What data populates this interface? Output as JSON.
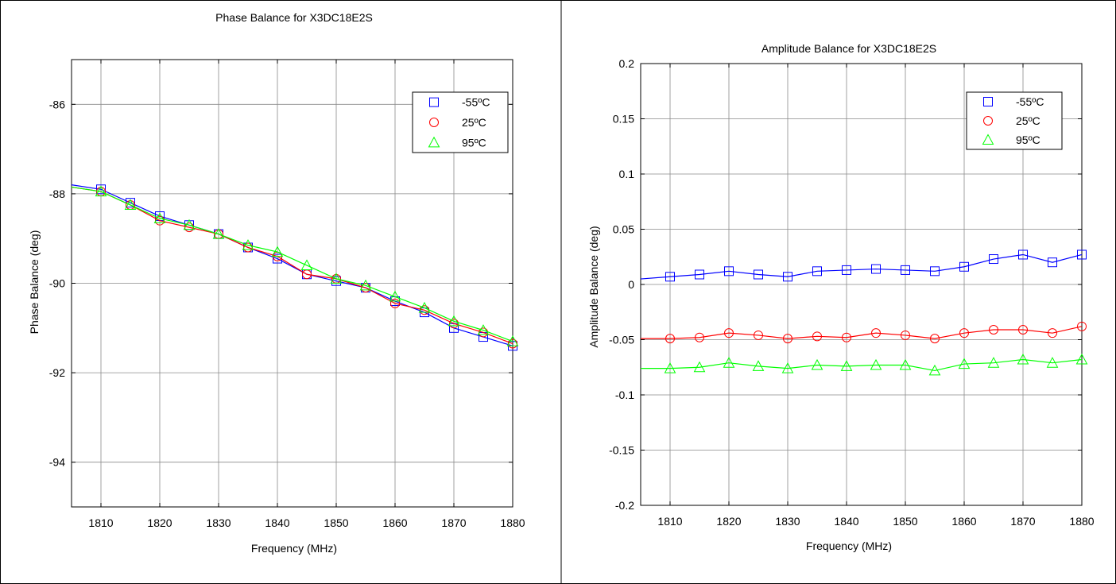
{
  "chart_data": [
    {
      "type": "line",
      "title": "Phase Balance for X3DC18E2S",
      "xlabel": "Frequency (MHz)",
      "ylabel": "Phase Balance (deg)",
      "xlim": [
        1805,
        1880
      ],
      "ylim": [
        -95,
        -85
      ],
      "xticks": [
        1810,
        1820,
        1830,
        1840,
        1850,
        1860,
        1870,
        1880
      ],
      "yticks": [
        -94,
        -92,
        -90,
        -88,
        -86
      ],
      "grid": true,
      "legend_position": "top-right",
      "x": [
        1810,
        1815,
        1820,
        1825,
        1830,
        1835,
        1840,
        1845,
        1850,
        1855,
        1860,
        1865,
        1870,
        1875,
        1880
      ],
      "series": [
        {
          "name": "-55ºC",
          "marker": "square",
          "color": "#0000ff",
          "start": [
            1805,
            -87.8
          ],
          "values": [
            -87.9,
            -88.2,
            -88.5,
            -88.7,
            -88.9,
            -89.2,
            -89.45,
            -89.8,
            -89.95,
            -90.1,
            -90.4,
            -90.65,
            -91.0,
            -91.2,
            -91.4
          ]
        },
        {
          "name": "25ºC",
          "marker": "circle",
          "color": "#ff0000",
          "start": [
            1805,
            -87.85
          ],
          "values": [
            -87.95,
            -88.25,
            -88.6,
            -88.75,
            -88.9,
            -89.2,
            -89.4,
            -89.8,
            -89.9,
            -90.1,
            -90.45,
            -90.6,
            -90.9,
            -91.1,
            -91.35
          ]
        },
        {
          "name": "95ºC",
          "marker": "triangle",
          "color": "#00ff00",
          "start": [
            1805,
            -87.85
          ],
          "values": [
            -87.95,
            -88.25,
            -88.55,
            -88.7,
            -88.9,
            -89.15,
            -89.3,
            -89.6,
            -89.9,
            -90.05,
            -90.3,
            -90.55,
            -90.85,
            -91.05,
            -91.3
          ]
        }
      ]
    },
    {
      "type": "line",
      "title": "Amplitude Balance for X3DC18E2S",
      "xlabel": "Frequency (MHz)",
      "ylabel": "Amplitude Balance (deg)",
      "xlim": [
        1805,
        1880
      ],
      "ylim": [
        -0.2,
        0.2
      ],
      "xticks": [
        1810,
        1820,
        1830,
        1840,
        1850,
        1860,
        1870,
        1880
      ],
      "yticks": [
        -0.2,
        -0.15,
        -0.1,
        -0.05,
        0,
        0.05,
        0.1,
        0.15,
        0.2
      ],
      "ytick_labels": [
        "-0.2",
        "-0.15",
        "-0.1",
        "-0.05",
        "0",
        "0.05",
        "0.1",
        "0.15",
        "0.2"
      ],
      "grid": true,
      "legend_position": "top-right",
      "x": [
        1810,
        1815,
        1820,
        1825,
        1830,
        1835,
        1840,
        1845,
        1850,
        1855,
        1860,
        1865,
        1870,
        1875,
        1880
      ],
      "series": [
        {
          "name": "-55ºC",
          "marker": "square",
          "color": "#0000ff",
          "start": [
            1805,
            0.005
          ],
          "values": [
            0.007,
            0.009,
            0.012,
            0.009,
            0.007,
            0.012,
            0.013,
            0.014,
            0.013,
            0.012,
            0.016,
            0.023,
            0.027,
            0.02,
            0.027
          ]
        },
        {
          "name": "25ºC",
          "marker": "circle",
          "color": "#ff0000",
          "start": [
            1805,
            -0.049
          ],
          "values": [
            -0.049,
            -0.048,
            -0.044,
            -0.046,
            -0.049,
            -0.047,
            -0.048,
            -0.044,
            -0.046,
            -0.049,
            -0.044,
            -0.041,
            -0.041,
            -0.044,
            -0.038
          ]
        },
        {
          "name": "95ºC",
          "marker": "triangle",
          "color": "#00ff00",
          "start": [
            1805,
            -0.076
          ],
          "values": [
            -0.076,
            -0.075,
            -0.071,
            -0.074,
            -0.076,
            -0.073,
            -0.074,
            -0.073,
            -0.073,
            -0.078,
            -0.072,
            -0.071,
            -0.068,
            -0.071,
            -0.068
          ]
        }
      ]
    }
  ]
}
